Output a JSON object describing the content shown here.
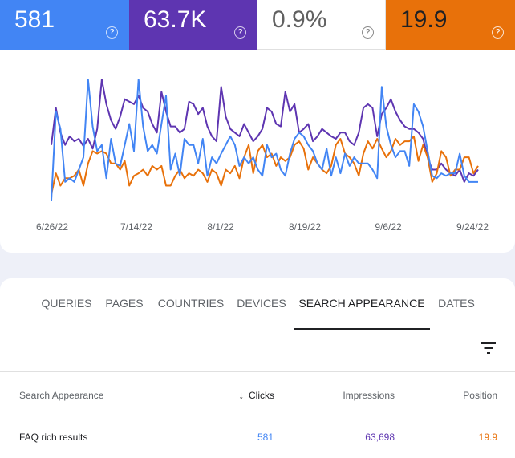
{
  "metrics": {
    "clicks": {
      "value": "581",
      "color": "#4285f4",
      "icon": "help-icon"
    },
    "impressions": {
      "value": "63.7K",
      "color": "#5e35b1",
      "icon": "help-icon"
    },
    "ctr": {
      "value": "0.9%",
      "color": "#ffffff",
      "icon": "help-icon"
    },
    "position": {
      "value": "19.9",
      "color": "#e8710a",
      "icon": "help-icon"
    }
  },
  "chart_data": {
    "type": "line",
    "x_tick_labels": [
      "6/26/22",
      "7/14/22",
      "8/1/22",
      "8/19/22",
      "9/6/22",
      "9/24/22"
    ],
    "series": [
      {
        "color": "#5e35b1",
        "values": [
          0.45,
          0.75,
          0.55,
          0.45,
          0.52,
          0.48,
          0.5,
          0.44,
          0.5,
          0.42,
          0.58,
          0.98,
          0.78,
          0.65,
          0.58,
          0.68,
          0.82,
          0.8,
          0.78,
          0.85,
          0.75,
          0.72,
          0.62,
          0.55,
          0.88,
          0.72,
          0.6,
          0.6,
          0.55,
          0.58,
          0.8,
          0.78,
          0.7,
          0.75,
          0.6,
          0.52,
          0.48,
          0.92,
          0.68,
          0.58,
          0.55,
          0.52,
          0.62,
          0.55,
          0.48,
          0.52,
          0.58,
          0.75,
          0.72,
          0.62,
          0.6,
          0.88,
          0.72,
          0.78,
          0.55,
          0.58,
          0.62,
          0.48,
          0.52,
          0.58,
          0.55,
          0.52,
          0.5,
          0.55,
          0.55,
          0.48,
          0.45,
          0.55,
          0.75,
          0.78,
          0.75,
          0.52,
          0.7,
          0.75,
          0.82,
          0.72,
          0.65,
          0.6,
          0.58,
          0.58,
          0.55,
          0.5,
          0.35,
          0.25,
          0.25,
          0.3,
          0.25,
          0.22,
          0.2,
          0.25,
          0.15,
          0.22,
          0.2,
          0.25
        ],
        "name": ""
      },
      {
        "color": "#e8710a",
        "values": [
          0.05,
          0.22,
          0.12,
          0.18,
          0.18,
          0.2,
          0.25,
          0.12,
          0.3,
          0.4,
          0.38,
          0.4,
          0.38,
          0.3,
          0.3,
          0.25,
          0.32,
          0.12,
          0.2,
          0.22,
          0.25,
          0.2,
          0.28,
          0.25,
          0.28,
          0.12,
          0.12,
          0.2,
          0.25,
          0.18,
          0.22,
          0.2,
          0.25,
          0.22,
          0.15,
          0.25,
          0.22,
          0.12,
          0.25,
          0.22,
          0.28,
          0.18,
          0.35,
          0.45,
          0.22,
          0.4,
          0.45,
          0.35,
          0.38,
          0.28,
          0.35,
          0.32,
          0.35,
          0.45,
          0.48,
          0.42,
          0.25,
          0.35,
          0.3,
          0.25,
          0.22,
          0.28,
          0.45,
          0.5,
          0.38,
          0.35,
          0.3,
          0.2,
          0.38,
          0.48,
          0.42,
          0.5,
          0.42,
          0.35,
          0.4,
          0.5,
          0.45,
          0.48,
          0.48,
          0.52,
          0.32,
          0.45,
          0.35,
          0.15,
          0.22,
          0.4,
          0.35,
          0.2,
          0.25,
          0.25,
          0.35,
          0.35,
          0.22,
          0.28
        ],
        "name": ""
      },
      {
        "color": "#4285f4",
        "values": [
          0.0,
          0.72,
          0.58,
          0.15,
          0.18,
          0.15,
          0.25,
          0.35,
          0.98,
          0.6,
          0.4,
          0.45,
          0.18,
          0.5,
          0.3,
          0.28,
          0.45,
          0.62,
          0.4,
          0.98,
          0.6,
          0.4,
          0.45,
          0.38,
          0.62,
          0.85,
          0.25,
          0.38,
          0.2,
          0.5,
          0.45,
          0.45,
          0.3,
          0.5,
          0.2,
          0.35,
          0.3,
          0.38,
          0.45,
          0.52,
          0.45,
          0.28,
          0.35,
          0.3,
          0.35,
          0.25,
          0.2,
          0.45,
          0.35,
          0.38,
          0.25,
          0.2,
          0.38,
          0.5,
          0.55,
          0.52,
          0.45,
          0.4,
          0.3,
          0.25,
          0.42,
          0.2,
          0.35,
          0.22,
          0.38,
          0.28,
          0.35,
          0.3,
          0.3,
          0.3,
          0.25,
          0.18,
          0.92,
          0.6,
          0.45,
          0.35,
          0.4,
          0.4,
          0.28,
          0.78,
          0.72,
          0.6,
          0.4,
          0.2,
          0.18,
          0.22,
          0.2,
          0.22,
          0.22,
          0.38,
          0.2,
          0.15,
          0.15,
          0.15
        ],
        "name": ""
      }
    ]
  },
  "tabs": [
    {
      "label": "QUERIES",
      "active": false
    },
    {
      "label": "PAGES",
      "active": false
    },
    {
      "label": "COUNTRIES",
      "active": false
    },
    {
      "label": "DEVICES",
      "active": false
    },
    {
      "label": "SEARCH APPEARANCE",
      "active": true
    },
    {
      "label": "DATES",
      "active": false
    }
  ],
  "filter": {
    "icon": "filter-icon"
  },
  "table": {
    "columns": {
      "appearance": "Search Appearance",
      "clicks": "Clicks",
      "impressions": "Impressions",
      "position": "Position"
    },
    "sort_icon": "arrow-down-icon",
    "rows": [
      {
        "appearance": "FAQ rich results",
        "clicks": "581",
        "impressions": "63,698",
        "position": "19.9"
      }
    ],
    "colors": {
      "clicks": "#4285f4",
      "impressions": "#5e35b1",
      "position": "#e8710a"
    }
  }
}
